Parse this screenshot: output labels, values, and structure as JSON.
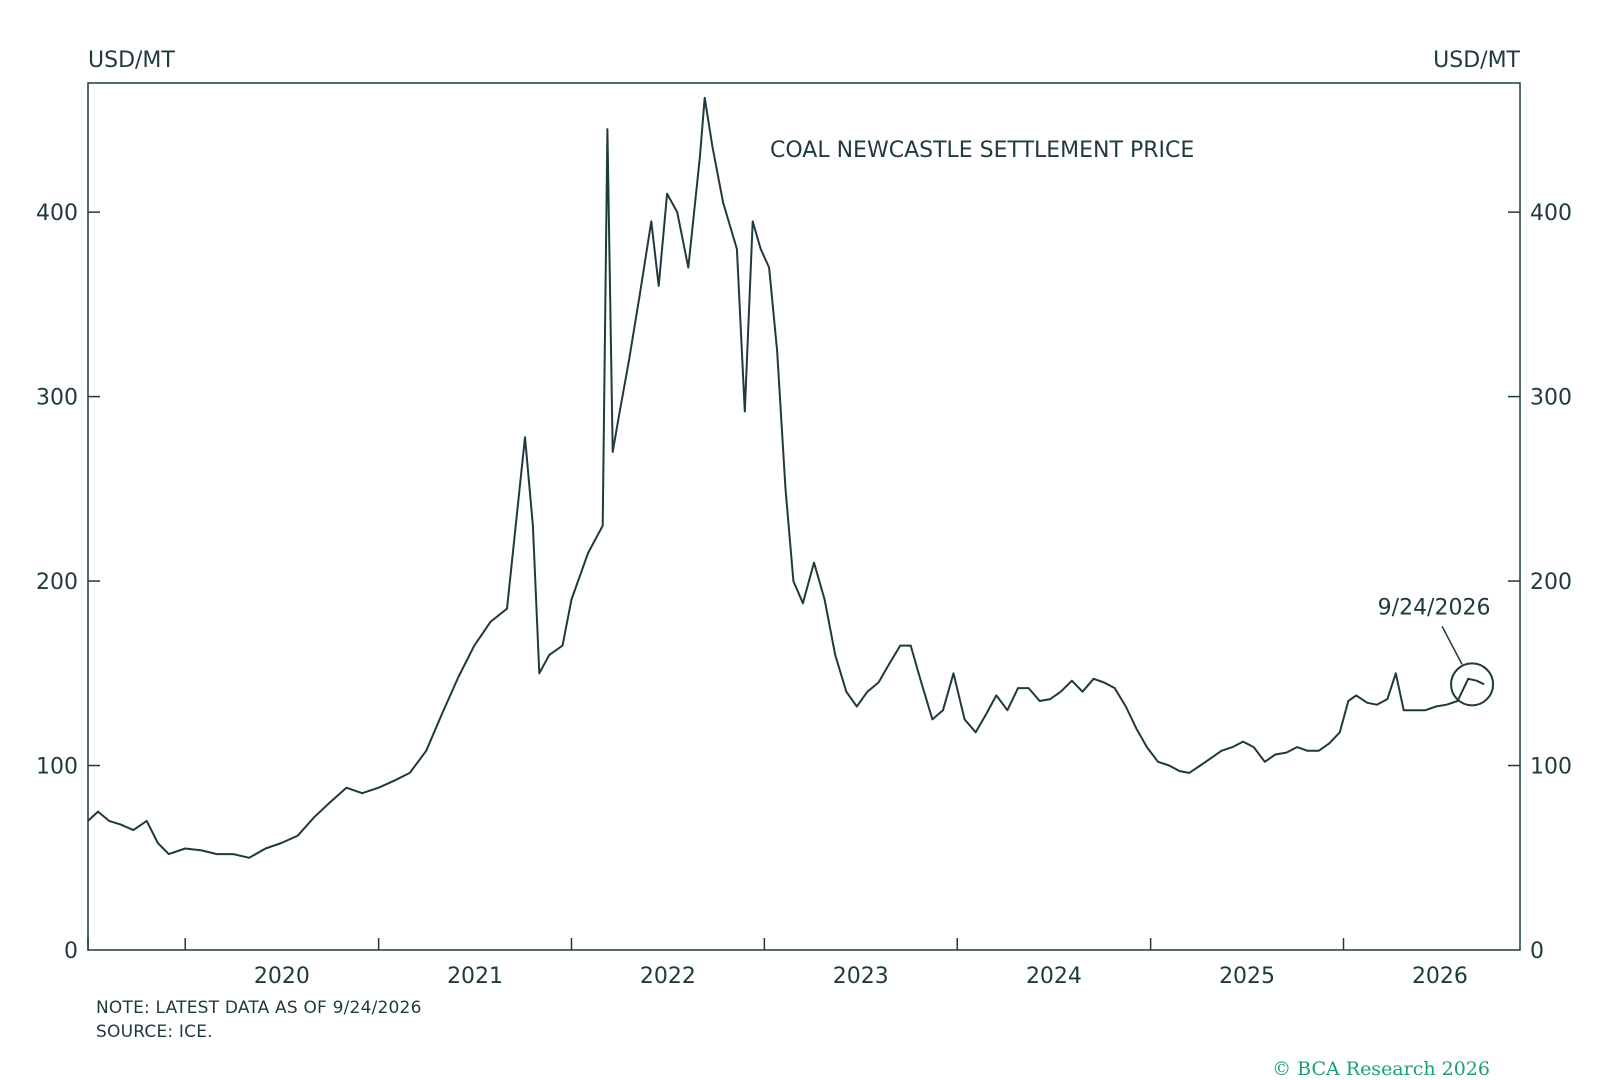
{
  "chart_data": {
    "type": "line",
    "title": "COAL NEWCASTLE SETTLEMENT PRICE",
    "y_unit_left": "USD/MT",
    "y_unit_right": "USD/MT",
    "ylim": [
      0,
      470
    ],
    "yticks": [
      0,
      100,
      200,
      300,
      400
    ],
    "x_range": [
      "2019-07-01",
      "2026-12-01"
    ],
    "x_tick_labels": [
      "2020",
      "2021",
      "2022",
      "2023",
      "2024",
      "2025",
      "2026"
    ],
    "grid": false,
    "line_color": "#1f3a3d",
    "series": [
      {
        "points": [
          [
            "2019-07-01",
            70
          ],
          [
            "2019-07-20",
            75
          ],
          [
            "2019-08-10",
            70
          ],
          [
            "2019-09-01",
            68
          ],
          [
            "2019-09-25",
            65
          ],
          [
            "2019-10-20",
            70
          ],
          [
            "2019-11-10",
            58
          ],
          [
            "2019-12-01",
            52
          ],
          [
            "2020-01-01",
            55
          ],
          [
            "2020-02-01",
            54
          ],
          [
            "2020-03-01",
            52
          ],
          [
            "2020-04-01",
            52
          ],
          [
            "2020-05-01",
            50
          ],
          [
            "2020-06-01",
            55
          ],
          [
            "2020-07-01",
            58
          ],
          [
            "2020-08-01",
            62
          ],
          [
            "2020-09-01",
            72
          ],
          [
            "2020-10-01",
            80
          ],
          [
            "2020-11-01",
            88
          ],
          [
            "2020-12-01",
            85
          ],
          [
            "2021-01-01",
            88
          ],
          [
            "2021-02-01",
            92
          ],
          [
            "2021-03-01",
            96
          ],
          [
            "2021-04-01",
            108
          ],
          [
            "2021-05-01",
            128
          ],
          [
            "2021-06-01",
            148
          ],
          [
            "2021-07-01",
            165
          ],
          [
            "2021-08-01",
            178
          ],
          [
            "2021-09-01",
            185
          ],
          [
            "2021-10-05",
            278
          ],
          [
            "2021-10-20",
            230
          ],
          [
            "2021-11-01",
            150
          ],
          [
            "2021-11-20",
            160
          ],
          [
            "2021-12-15",
            165
          ],
          [
            "2022-01-01",
            190
          ],
          [
            "2022-02-01",
            215
          ],
          [
            "2022-03-01",
            230
          ],
          [
            "2022-03-10",
            445
          ],
          [
            "2022-03-20",
            270
          ],
          [
            "2022-04-01",
            290
          ],
          [
            "2022-04-20",
            320
          ],
          [
            "2022-05-10",
            355
          ],
          [
            "2022-06-01",
            395
          ],
          [
            "2022-06-15",
            360
          ],
          [
            "2022-07-01",
            410
          ],
          [
            "2022-07-20",
            400
          ],
          [
            "2022-08-10",
            370
          ],
          [
            "2022-09-01",
            430
          ],
          [
            "2022-09-10",
            462
          ],
          [
            "2022-09-25",
            435
          ],
          [
            "2022-10-15",
            405
          ],
          [
            "2022-11-10",
            380
          ],
          [
            "2022-11-25",
            292
          ],
          [
            "2022-12-10",
            395
          ],
          [
            "2022-12-25",
            380
          ],
          [
            "2023-01-10",
            370
          ],
          [
            "2023-01-25",
            325
          ],
          [
            "2023-02-10",
            250
          ],
          [
            "2023-02-25",
            200
          ],
          [
            "2023-03-15",
            188
          ],
          [
            "2023-04-05",
            210
          ],
          [
            "2023-04-25",
            190
          ],
          [
            "2023-05-15",
            160
          ],
          [
            "2023-06-05",
            140
          ],
          [
            "2023-06-25",
            132
          ],
          [
            "2023-07-15",
            140
          ],
          [
            "2023-08-05",
            145
          ],
          [
            "2023-08-25",
            155
          ],
          [
            "2023-09-15",
            165
          ],
          [
            "2023-10-05",
            165
          ],
          [
            "2023-10-25",
            145
          ],
          [
            "2023-11-15",
            125
          ],
          [
            "2023-12-05",
            130
          ],
          [
            "2023-12-25",
            150
          ],
          [
            "2024-01-15",
            125
          ],
          [
            "2024-02-05",
            118
          ],
          [
            "2024-02-25",
            128
          ],
          [
            "2024-03-15",
            138
          ],
          [
            "2024-04-05",
            130
          ],
          [
            "2024-04-25",
            142
          ],
          [
            "2024-05-15",
            142
          ],
          [
            "2024-06-05",
            135
          ],
          [
            "2024-06-25",
            136
          ],
          [
            "2024-07-15",
            140
          ],
          [
            "2024-08-05",
            146
          ],
          [
            "2024-08-25",
            140
          ],
          [
            "2024-09-15",
            147
          ],
          [
            "2024-10-05",
            145
          ],
          [
            "2024-10-25",
            142
          ],
          [
            "2024-11-15",
            132
          ],
          [
            "2024-12-05",
            120
          ],
          [
            "2024-12-25",
            110
          ],
          [
            "2025-01-15",
            102
          ],
          [
            "2025-02-05",
            100
          ],
          [
            "2025-02-25",
            97
          ],
          [
            "2025-03-15",
            96
          ],
          [
            "2025-04-05",
            100
          ],
          [
            "2025-04-25",
            104
          ],
          [
            "2025-05-15",
            108
          ],
          [
            "2025-06-05",
            110
          ],
          [
            "2025-06-25",
            113
          ],
          [
            "2025-07-15",
            110
          ],
          [
            "2025-08-05",
            102
          ],
          [
            "2025-08-25",
            106
          ],
          [
            "2025-09-15",
            107
          ],
          [
            "2025-10-05",
            110
          ],
          [
            "2025-10-25",
            108
          ],
          [
            "2025-11-15",
            108
          ],
          [
            "2025-12-05",
            112
          ],
          [
            "2025-12-25",
            118
          ],
          [
            "2026-01-10",
            135
          ],
          [
            "2026-01-25",
            138
          ],
          [
            "2026-02-15",
            134
          ],
          [
            "2026-03-05",
            133
          ],
          [
            "2026-03-25",
            136
          ],
          [
            "2026-04-10",
            150
          ],
          [
            "2026-04-25",
            130
          ],
          [
            "2026-05-15",
            130
          ],
          [
            "2026-06-05",
            130
          ],
          [
            "2026-06-25",
            132
          ],
          [
            "2026-07-15",
            133
          ],
          [
            "2026-08-05",
            135
          ],
          [
            "2026-08-25",
            147
          ],
          [
            "2026-09-10",
            146
          ],
          [
            "2026-09-24",
            144
          ]
        ]
      }
    ],
    "annotation": {
      "label": "9/24/2026",
      "date": "2026-09-24",
      "value": 144
    }
  },
  "footer": {
    "note": "NOTE: LATEST DATA AS OF 9/24/2026",
    "source": "SOURCE: ICE.",
    "copyright": "© BCA Research 2026"
  }
}
